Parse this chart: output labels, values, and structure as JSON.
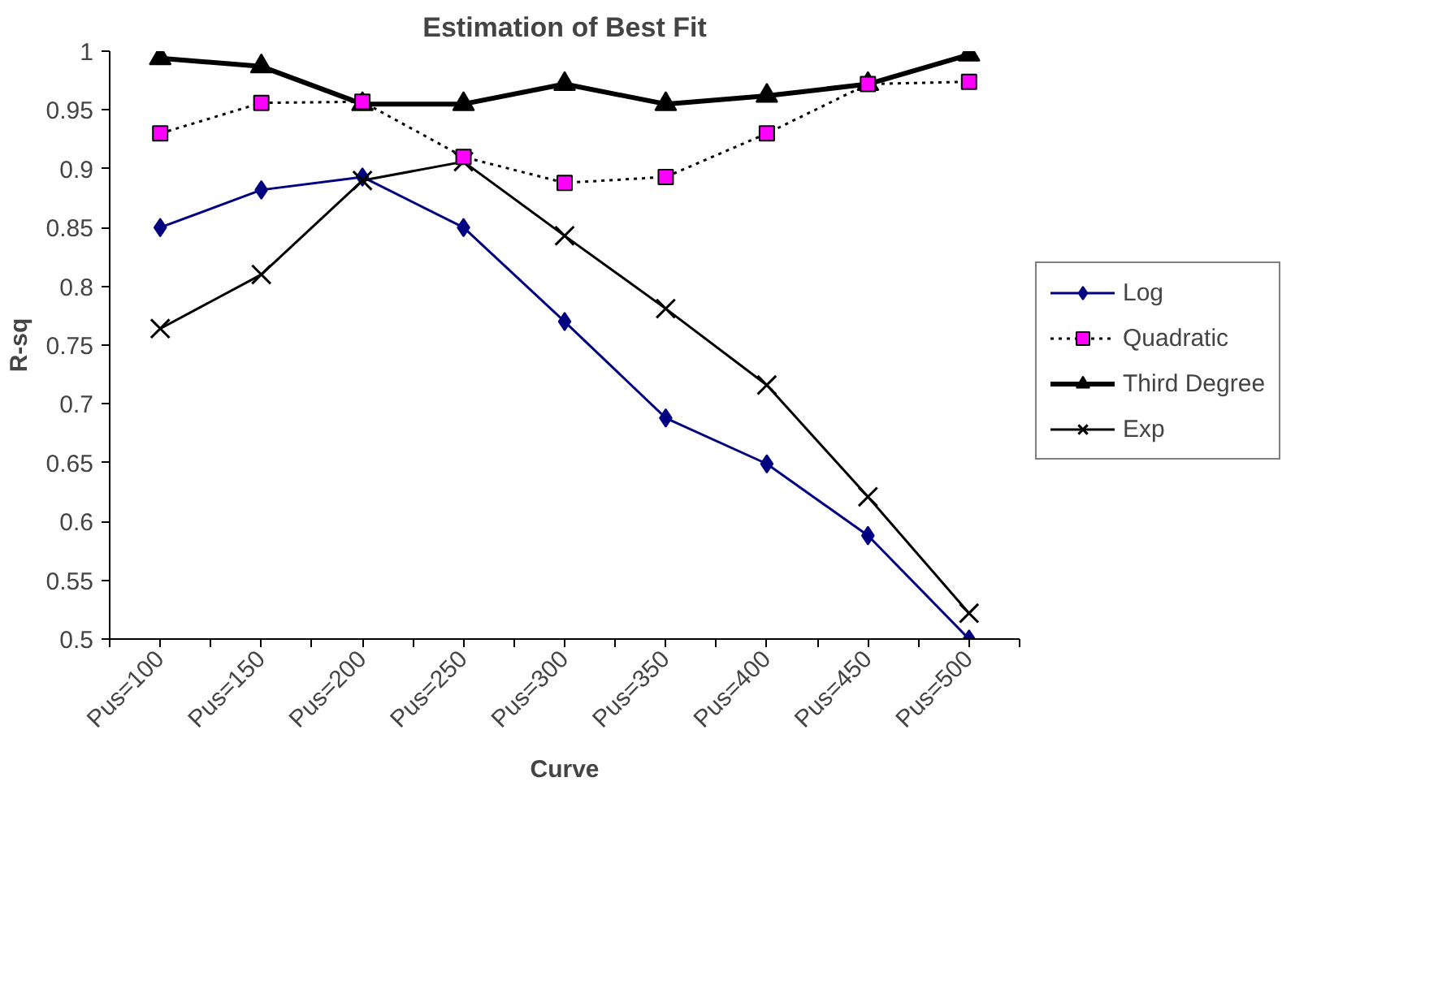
{
  "chart_data": {
    "type": "line",
    "title": "Estimation of Best Fit",
    "xlabel": "Curve",
    "ylabel": "R-sq",
    "categories": [
      "Pus=100",
      "Pus=150",
      "Pus=200",
      "Pus=250",
      "Pus=300",
      "Pus=350",
      "Pus=400",
      "Pus=450",
      "Pus=500"
    ],
    "ylim": [
      0.5,
      1
    ],
    "yticks": [
      0.5,
      0.55,
      0.6,
      0.65,
      0.7,
      0.75,
      0.8,
      0.85,
      0.9,
      0.95,
      1
    ],
    "grid": false,
    "legend": "right",
    "series": [
      {
        "name": "Log",
        "color": "#000080",
        "marker": "diamond",
        "line_style": "solid",
        "values": [
          0.85,
          0.882,
          0.893,
          0.85,
          0.77,
          0.688,
          0.649,
          0.588,
          0.5
        ]
      },
      {
        "name": "Quadratic",
        "color": "#ff00ff",
        "marker": "square",
        "line_style": "dotted",
        "values": [
          0.93,
          0.956,
          0.957,
          0.91,
          0.888,
          0.893,
          0.93,
          0.972,
          0.974
        ]
      },
      {
        "name": "Third Degree",
        "color": "#000000",
        "marker": "triangle",
        "line_style": "solid",
        "values": [
          0.994,
          0.987,
          0.955,
          0.955,
          0.972,
          0.955,
          0.962,
          0.972,
          0.997
        ]
      },
      {
        "name": "Exp",
        "color": "#000000",
        "marker": "cross",
        "line_style": "solid",
        "values": [
          0.764,
          0.81,
          0.89,
          0.906,
          0.843,
          0.781,
          0.716,
          0.621,
          0.522
        ]
      }
    ]
  }
}
